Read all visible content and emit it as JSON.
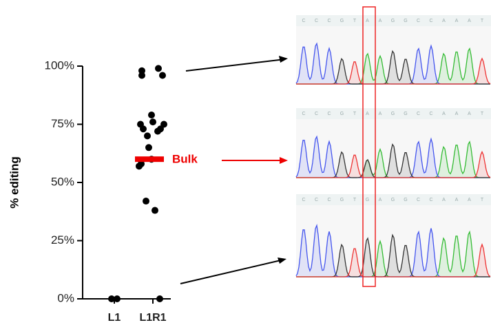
{
  "chart_data": {
    "type": "strip",
    "y_label": "% editing",
    "categories": [
      "L1",
      "L1R1"
    ],
    "series": [
      {
        "values": [
          0,
          0
        ]
      },
      {
        "values": [
          98,
          96,
          99,
          96,
          79,
          75,
          76,
          75,
          73,
          73,
          72,
          70,
          65,
          60,
          58,
          57,
          42,
          38,
          0
        ]
      }
    ],
    "ylim": [
      0,
      100
    ],
    "yticks": [
      {
        "value": 0,
        "label": "0%"
      },
      {
        "value": 25,
        "label": "25%"
      },
      {
        "value": 50,
        "label": "50%"
      },
      {
        "value": 75,
        "label": "75%"
      },
      {
        "value": 100,
        "label": "100%"
      }
    ],
    "bulk": {
      "label": "Bulk",
      "value": 60,
      "color": "#ee0000"
    },
    "point_color": "#000000"
  },
  "chromatograms": [
    {
      "sequence": [
        "C",
        "C",
        "C",
        "G",
        "T",
        "A",
        "A",
        "G",
        "G",
        "C",
        "C",
        "A",
        "A",
        "A",
        "T"
      ]
    },
    {
      "sequence": [
        "C",
        "C",
        "C",
        "G",
        "T",
        "A",
        "A",
        "G",
        "G",
        "C",
        "C",
        "A",
        "A",
        "A",
        "T"
      ]
    },
    {
      "sequence": [
        "C",
        "C",
        "C",
        "G",
        "T",
        "G",
        "A",
        "G",
        "G",
        "C",
        "C",
        "A",
        "A",
        "A",
        "T"
      ]
    }
  ]
}
